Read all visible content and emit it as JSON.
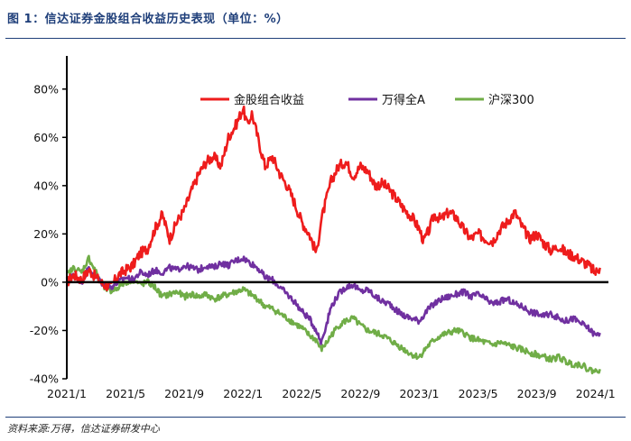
{
  "figure": {
    "title": "图 1：信达证券金股组合收益历史表现（单位：%）",
    "source": "资料来源:万得，信达证券研发中心"
  },
  "colors": {
    "portfolio": "#ee1c1c",
    "wind_all_a": "#7030a0",
    "csi300": "#70ad47",
    "heading": "#1f3f7a"
  },
  "chart_data": {
    "type": "line",
    "title": "",
    "xlabel": "",
    "ylabel": "",
    "ylim": [
      -40,
      90
    ],
    "yticks": [
      -40,
      -20,
      0,
      20,
      40,
      60,
      80
    ],
    "ytick_labels": [
      "-40%",
      "-20%",
      "0%",
      "20%",
      "40%",
      "60%",
      "80%"
    ],
    "xlim": [
      0,
      37
    ],
    "xtick_labels": [
      "2021/1",
      "2021/5",
      "2021/9",
      "2022/1",
      "2022/5",
      "2022/9",
      "2023/1",
      "2023/5",
      "2023/9",
      "2024/1"
    ],
    "x_unit": "months since 2021/1",
    "legend_position": "top-right",
    "series": [
      {
        "name": "金股组合收益",
        "color_key": "portfolio",
        "points": [
          [
            0,
            0
          ],
          [
            0.5,
            3
          ],
          [
            1,
            1
          ],
          [
            1.5,
            5
          ],
          [
            2,
            2
          ],
          [
            2.5,
            -1
          ],
          [
            3,
            -2
          ],
          [
            3.5,
            3
          ],
          [
            4,
            5
          ],
          [
            4.5,
            7
          ],
          [
            5,
            12
          ],
          [
            5.5,
            14
          ],
          [
            6,
            22
          ],
          [
            6.5,
            28
          ],
          [
            7,
            18
          ],
          [
            7.5,
            25
          ],
          [
            8,
            30
          ],
          [
            8.5,
            38
          ],
          [
            9,
            45
          ],
          [
            9.5,
            50
          ],
          [
            10,
            52
          ],
          [
            10.5,
            48
          ],
          [
            11,
            60
          ],
          [
            11.5,
            65
          ],
          [
            12,
            72
          ],
          [
            12.3,
            65
          ],
          [
            12.6,
            70
          ],
          [
            13,
            60
          ],
          [
            13.5,
            48
          ],
          [
            14,
            52
          ],
          [
            14.5,
            45
          ],
          [
            15,
            40
          ],
          [
            15.5,
            33
          ],
          [
            16,
            25
          ],
          [
            16.5,
            20
          ],
          [
            17,
            12
          ],
          [
            17.3,
            25
          ],
          [
            17.7,
            35
          ],
          [
            18,
            42
          ],
          [
            18.5,
            48
          ],
          [
            19,
            50
          ],
          [
            19.5,
            44
          ],
          [
            20,
            48
          ],
          [
            20.5,
            46
          ],
          [
            21,
            40
          ],
          [
            21.5,
            41
          ],
          [
            22,
            38
          ],
          [
            22.5,
            34
          ],
          [
            23,
            30
          ],
          [
            23.5,
            27
          ],
          [
            24,
            22
          ],
          [
            24.3,
            17
          ],
          [
            24.7,
            22
          ],
          [
            25,
            28
          ],
          [
            25.5,
            26
          ],
          [
            26,
            29
          ],
          [
            26.5,
            27
          ],
          [
            27,
            22
          ],
          [
            27.5,
            18
          ],
          [
            28,
            20
          ],
          [
            28.5,
            18
          ],
          [
            29,
            17
          ],
          [
            29.5,
            22
          ],
          [
            30,
            25
          ],
          [
            30.5,
            29
          ],
          [
            31,
            23
          ],
          [
            31.5,
            18
          ],
          [
            32,
            20
          ],
          [
            32.5,
            16
          ],
          [
            33,
            13
          ],
          [
            33.5,
            15
          ],
          [
            34,
            12
          ],
          [
            34.5,
            11
          ],
          [
            35,
            9
          ],
          [
            35.5,
            7
          ],
          [
            36,
            4
          ],
          [
            36.3,
            6
          ]
        ]
      },
      {
        "name": "万得全A",
        "color_key": "wind_all_a",
        "points": [
          [
            0,
            1
          ],
          [
            0.5,
            3
          ],
          [
            1,
            0
          ],
          [
            1.5,
            6
          ],
          [
            2,
            2
          ],
          [
            2.5,
            -1
          ],
          [
            3,
            -2
          ],
          [
            3.5,
            0
          ],
          [
            4,
            2
          ],
          [
            4.5,
            1
          ],
          [
            5,
            4
          ],
          [
            5.5,
            3
          ],
          [
            6,
            5
          ],
          [
            6.5,
            4
          ],
          [
            7,
            6
          ],
          [
            7.5,
            5
          ],
          [
            8,
            7
          ],
          [
            8.5,
            6
          ],
          [
            9,
            5
          ],
          [
            9.5,
            7
          ],
          [
            10,
            6
          ],
          [
            10.5,
            8
          ],
          [
            11,
            7
          ],
          [
            11.5,
            9
          ],
          [
            12,
            10
          ],
          [
            12.5,
            8
          ],
          [
            13,
            6
          ],
          [
            13.5,
            2
          ],
          [
            14,
            1
          ],
          [
            14.5,
            -2
          ],
          [
            15,
            -5
          ],
          [
            15.5,
            -8
          ],
          [
            16,
            -12
          ],
          [
            16.5,
            -15
          ],
          [
            17,
            -20
          ],
          [
            17.3,
            -25
          ],
          [
            17.7,
            -17
          ],
          [
            18,
            -10
          ],
          [
            18.5,
            -5
          ],
          [
            19,
            -2
          ],
          [
            19.5,
            -1
          ],
          [
            20,
            -4
          ],
          [
            20.5,
            -3
          ],
          [
            21,
            -6
          ],
          [
            21.5,
            -8
          ],
          [
            22,
            -9
          ],
          [
            22.5,
            -12
          ],
          [
            23,
            -14
          ],
          [
            23.5,
            -15
          ],
          [
            24,
            -16
          ],
          [
            24.5,
            -12
          ],
          [
            25,
            -9
          ],
          [
            25.5,
            -7
          ],
          [
            26,
            -6
          ],
          [
            26.5,
            -5
          ],
          [
            27,
            -4
          ],
          [
            27.5,
            -6
          ],
          [
            28,
            -5
          ],
          [
            28.5,
            -7
          ],
          [
            29,
            -9
          ],
          [
            29.5,
            -8
          ],
          [
            30,
            -7
          ],
          [
            30.5,
            -9
          ],
          [
            31,
            -10
          ],
          [
            31.5,
            -12
          ],
          [
            32,
            -13
          ],
          [
            32.5,
            -14
          ],
          [
            33,
            -13
          ],
          [
            33.5,
            -15
          ],
          [
            34,
            -16
          ],
          [
            34.5,
            -15
          ],
          [
            35,
            -17
          ],
          [
            35.5,
            -19
          ],
          [
            36,
            -22
          ],
          [
            36.3,
            -21
          ]
        ]
      },
      {
        "name": "沪深300",
        "color_key": "csi300",
        "points": [
          [
            0,
            3
          ],
          [
            0.5,
            6
          ],
          [
            1,
            4
          ],
          [
            1.5,
            10
          ],
          [
            2,
            4
          ],
          [
            2.5,
            -2
          ],
          [
            3,
            -4
          ],
          [
            3.5,
            -2
          ],
          [
            4,
            0
          ],
          [
            4.5,
            1
          ],
          [
            5,
            -1
          ],
          [
            5.5,
            0
          ],
          [
            6,
            -2
          ],
          [
            6.5,
            -6
          ],
          [
            7,
            -5
          ],
          [
            7.5,
            -4
          ],
          [
            8,
            -6
          ],
          [
            8.5,
            -5
          ],
          [
            9,
            -6
          ],
          [
            9.5,
            -5
          ],
          [
            10,
            -7
          ],
          [
            10.5,
            -6
          ],
          [
            11,
            -5
          ],
          [
            11.5,
            -4
          ],
          [
            12,
            -3
          ],
          [
            12.5,
            -5
          ],
          [
            13,
            -7
          ],
          [
            13.5,
            -10
          ],
          [
            14,
            -11
          ],
          [
            14.5,
            -13
          ],
          [
            15,
            -15
          ],
          [
            15.5,
            -17
          ],
          [
            16,
            -19
          ],
          [
            16.5,
            -22
          ],
          [
            17,
            -24
          ],
          [
            17.3,
            -28
          ],
          [
            17.7,
            -25
          ],
          [
            18,
            -22
          ],
          [
            18.5,
            -18
          ],
          [
            19,
            -16
          ],
          [
            19.5,
            -15
          ],
          [
            20,
            -18
          ],
          [
            20.5,
            -20
          ],
          [
            21,
            -21
          ],
          [
            21.5,
            -22
          ],
          [
            22,
            -24
          ],
          [
            22.5,
            -26
          ],
          [
            23,
            -28
          ],
          [
            23.5,
            -30
          ],
          [
            24,
            -31
          ],
          [
            24.5,
            -27
          ],
          [
            25,
            -24
          ],
          [
            25.5,
            -22
          ],
          [
            26,
            -21
          ],
          [
            26.5,
            -20
          ],
          [
            27,
            -21
          ],
          [
            27.5,
            -23
          ],
          [
            28,
            -24
          ],
          [
            28.5,
            -25
          ],
          [
            29,
            -26
          ],
          [
            29.5,
            -25
          ],
          [
            30,
            -26
          ],
          [
            30.5,
            -27
          ],
          [
            31,
            -28
          ],
          [
            31.5,
            -29
          ],
          [
            32,
            -30
          ],
          [
            32.5,
            -31
          ],
          [
            33,
            -32
          ],
          [
            33.5,
            -31
          ],
          [
            34,
            -33
          ],
          [
            34.5,
            -34
          ],
          [
            35,
            -34
          ],
          [
            35.5,
            -36
          ],
          [
            36,
            -37
          ],
          [
            36.3,
            -36
          ]
        ]
      }
    ]
  }
}
